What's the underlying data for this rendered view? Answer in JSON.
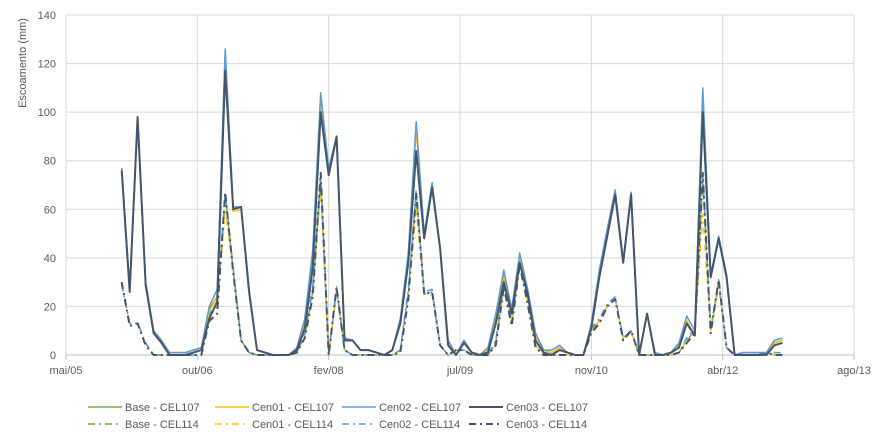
{
  "chart_data": {
    "type": "line",
    "title": "",
    "xlabel": "",
    "ylabel": "Escoamento (mm)",
    "ylim": [
      0,
      140
    ],
    "yticks": [
      "0",
      "20",
      "40",
      "60",
      "80",
      "100",
      "120",
      "140"
    ],
    "x_ticks": [
      "mai/05",
      "out/06",
      "fev/08",
      "jul/09",
      "nov/10",
      "abr/12",
      "ago/13"
    ],
    "x_start": "2005-05",
    "x_end": "2013-08",
    "grid": "vertical and horizontal",
    "legend_position": "bottom",
    "x": [
      "2005-12",
      "2006-01",
      "2006-02",
      "2006-03",
      "2006-04",
      "2006-05",
      "2006-06",
      "2006-07",
      "2006-08",
      "2006-09",
      "2006-10",
      "2006-11",
      "2006-12",
      "2007-01",
      "2007-02",
      "2007-03",
      "2007-04",
      "2007-05",
      "2007-06",
      "2007-07",
      "2007-08",
      "2007-09",
      "2007-10",
      "2007-11",
      "2007-12",
      "2008-01",
      "2008-02",
      "2008-03",
      "2008-04",
      "2008-05",
      "2008-06",
      "2008-07",
      "2008-08",
      "2008-09",
      "2008-10",
      "2008-11",
      "2008-12",
      "2009-01",
      "2009-02",
      "2009-03",
      "2009-04",
      "2009-05",
      "2009-06",
      "2009-07",
      "2009-08",
      "2009-09",
      "2009-10",
      "2009-11",
      "2009-12",
      "2010-01",
      "2010-02",
      "2010-03",
      "2010-04",
      "2010-05",
      "2010-06",
      "2010-07",
      "2010-08",
      "2010-09",
      "2010-10",
      "2010-11",
      "2010-12",
      "2011-01",
      "2011-02",
      "2011-03",
      "2011-04",
      "2011-05",
      "2011-06",
      "2011-07",
      "2011-08",
      "2011-09",
      "2011-10",
      "2011-11",
      "2011-12",
      "2012-01",
      "2012-02",
      "2012-03",
      "2012-04",
      "2012-05",
      "2012-06",
      "2012-07",
      "2012-08",
      "2012-09",
      "2012-10",
      "2012-11"
    ],
    "series": [
      {
        "name": "Base - CEL107",
        "color": "#70ad47",
        "dash": "solid",
        "width": 1.5,
        "values": [
          77,
          27,
          97,
          30,
          10,
          6,
          1,
          1,
          1,
          2,
          3,
          19,
          24,
          124,
          60,
          61,
          26,
          2,
          1,
          0,
          0,
          0,
          3,
          13,
          40,
          106,
          76,
          90,
          6,
          6,
          2,
          2,
          1,
          0,
          2,
          14,
          40,
          95,
          49,
          70,
          44,
          6,
          0,
          6,
          1,
          0,
          2,
          15,
          33,
          18,
          40,
          26,
          8,
          2,
          1,
          3,
          1,
          0,
          0,
          12,
          33,
          50,
          67,
          38,
          67,
          0,
          17,
          1,
          0,
          1,
          4,
          14,
          8,
          108,
          32,
          48,
          32,
          0,
          1,
          1,
          1,
          1,
          5,
          6
        ]
      },
      {
        "name": "Cen01 - CEL107",
        "color": "#ffc000",
        "dash": "solid",
        "width": 1.5,
        "values": [
          77,
          27,
          97,
          30,
          10,
          6,
          1,
          1,
          1,
          2,
          3,
          18,
          24,
          123,
          59,
          60,
          26,
          2,
          1,
          0,
          0,
          0,
          3,
          13,
          39,
          106,
          75,
          89,
          6,
          6,
          2,
          2,
          1,
          0,
          2,
          14,
          39,
          93,
          49,
          69,
          43,
          6,
          0,
          6,
          1,
          0,
          2,
          15,
          32,
          18,
          40,
          26,
          8,
          2,
          1,
          3,
          1,
          0,
          0,
          12,
          33,
          50,
          67,
          38,
          67,
          0,
          17,
          1,
          0,
          1,
          4,
          14,
          8,
          107,
          32,
          48,
          32,
          0,
          1,
          1,
          1,
          1,
          5,
          6
        ]
      },
      {
        "name": "Cen02 - CEL107",
        "color": "#5b9bd5",
        "dash": "solid",
        "width": 1.5,
        "values": [
          77,
          27,
          97,
          30,
          10,
          6,
          1,
          1,
          1,
          2,
          3,
          20,
          27,
          126,
          61,
          61,
          27,
          2,
          1,
          0,
          0,
          0,
          3,
          15,
          43,
          108,
          77,
          90,
          7,
          6,
          2,
          2,
          1,
          0,
          2,
          15,
          42,
          96,
          50,
          71,
          44,
          6,
          0,
          6,
          1,
          0,
          3,
          17,
          35,
          19,
          42,
          27,
          9,
          2,
          2,
          4,
          1,
          0,
          0,
          13,
          35,
          52,
          68,
          39,
          67,
          0,
          17,
          1,
          0,
          1,
          5,
          16,
          10,
          110,
          33,
          49,
          33,
          0,
          1,
          1,
          1,
          1,
          6,
          7
        ]
      },
      {
        "name": "Cen03 - CEL107",
        "color": "#44546a",
        "dash": "solid",
        "width": 2,
        "values": [
          76,
          26,
          98,
          29,
          9,
          5,
          0,
          0,
          0,
          1,
          2,
          15,
          22,
          117,
          60,
          61,
          26,
          2,
          1,
          0,
          0,
          0,
          2,
          11,
          36,
          100,
          74,
          90,
          6,
          6,
          2,
          2,
          1,
          0,
          2,
          13,
          38,
          84,
          48,
          69,
          44,
          4,
          0,
          5,
          1,
          0,
          1,
          13,
          30,
          17,
          38,
          25,
          6,
          1,
          0,
          2,
          1,
          0,
          0,
          11,
          32,
          49,
          66,
          38,
          66,
          0,
          17,
          0,
          0,
          1,
          3,
          13,
          8,
          100,
          32,
          48,
          32,
          0,
          0,
          0,
          0,
          0,
          4,
          5
        ]
      },
      {
        "name": "Base - CEL114",
        "color": "#70ad47",
        "dash": "dashdot",
        "width": 1.5,
        "values": [
          29,
          13,
          13,
          5,
          0,
          0,
          0,
          0,
          0,
          0,
          0,
          16,
          20,
          66,
          35,
          6,
          1,
          0,
          0,
          0,
          0,
          0,
          1,
          8,
          26,
          72,
          0,
          27,
          2,
          0,
          0,
          0,
          0,
          0,
          0,
          2,
          25,
          66,
          25,
          26,
          4,
          0,
          2,
          2,
          0,
          0,
          0,
          5,
          29,
          13,
          38,
          22,
          4,
          0,
          0,
          0,
          0,
          0,
          0,
          10,
          14,
          20,
          23,
          7,
          10,
          0,
          0,
          0,
          0,
          0,
          1,
          6,
          10,
          72,
          10,
          30,
          3,
          0,
          0,
          0,
          0,
          1,
          0,
          0
        ]
      },
      {
        "name": "Cen01 - CEL114",
        "color": "#ffc000",
        "dash": "dashdot",
        "width": 1.5,
        "values": [
          29,
          13,
          13,
          5,
          0,
          0,
          0,
          0,
          0,
          0,
          0,
          16,
          20,
          60,
          35,
          6,
          1,
          0,
          0,
          0,
          0,
          0,
          1,
          8,
          26,
          68,
          0,
          26,
          2,
          0,
          0,
          0,
          0,
          0,
          0,
          2,
          24,
          60,
          25,
          26,
          4,
          0,
          2,
          2,
          0,
          0,
          0,
          5,
          28,
          13,
          37,
          22,
          4,
          0,
          0,
          0,
          0,
          0,
          0,
          10,
          14,
          20,
          23,
          7,
          10,
          0,
          0,
          0,
          0,
          0,
          1,
          6,
          10,
          58,
          10,
          28,
          3,
          0,
          0,
          0,
          0,
          1,
          0,
          0
        ]
      },
      {
        "name": "Cen02 - CEL114",
        "color": "#5b9bd5",
        "dash": "dashdot",
        "width": 1.5,
        "values": [
          29,
          13,
          13,
          5,
          0,
          0,
          0,
          0,
          0,
          0,
          0,
          17,
          21,
          67,
          36,
          6,
          1,
          0,
          0,
          0,
          0,
          0,
          1,
          9,
          28,
          74,
          0,
          28,
          2,
          0,
          0,
          0,
          0,
          0,
          0,
          2,
          27,
          68,
          26,
          27,
          4,
          0,
          2,
          2,
          0,
          0,
          0,
          6,
          30,
          14,
          39,
          23,
          4,
          0,
          0,
          0,
          0,
          0,
          0,
          11,
          15,
          21,
          24,
          7,
          10,
          0,
          0,
          0,
          0,
          0,
          1,
          7,
          11,
          74,
          11,
          31,
          3,
          0,
          0,
          0,
          0,
          1,
          1,
          1
        ]
      },
      {
        "name": "Cen03 - CEL114",
        "color": "#44546a",
        "dash": "dashdot",
        "width": 2,
        "values": [
          30,
          12,
          13,
          4,
          0,
          0,
          0,
          0,
          0,
          0,
          0,
          14,
          17,
          67,
          34,
          6,
          1,
          0,
          0,
          0,
          0,
          0,
          1,
          7,
          24,
          75,
          0,
          28,
          2,
          0,
          0,
          0,
          0,
          0,
          0,
          1,
          23,
          67,
          25,
          26,
          4,
          0,
          2,
          2,
          0,
          0,
          0,
          4,
          28,
          12,
          37,
          21,
          3,
          0,
          0,
          0,
          0,
          0,
          0,
          9,
          13,
          20,
          23,
          6,
          10,
          0,
          0,
          0,
          0,
          0,
          1,
          5,
          9,
          75,
          9,
          31,
          3,
          0,
          0,
          0,
          0,
          1,
          0,
          0
        ]
      }
    ]
  }
}
